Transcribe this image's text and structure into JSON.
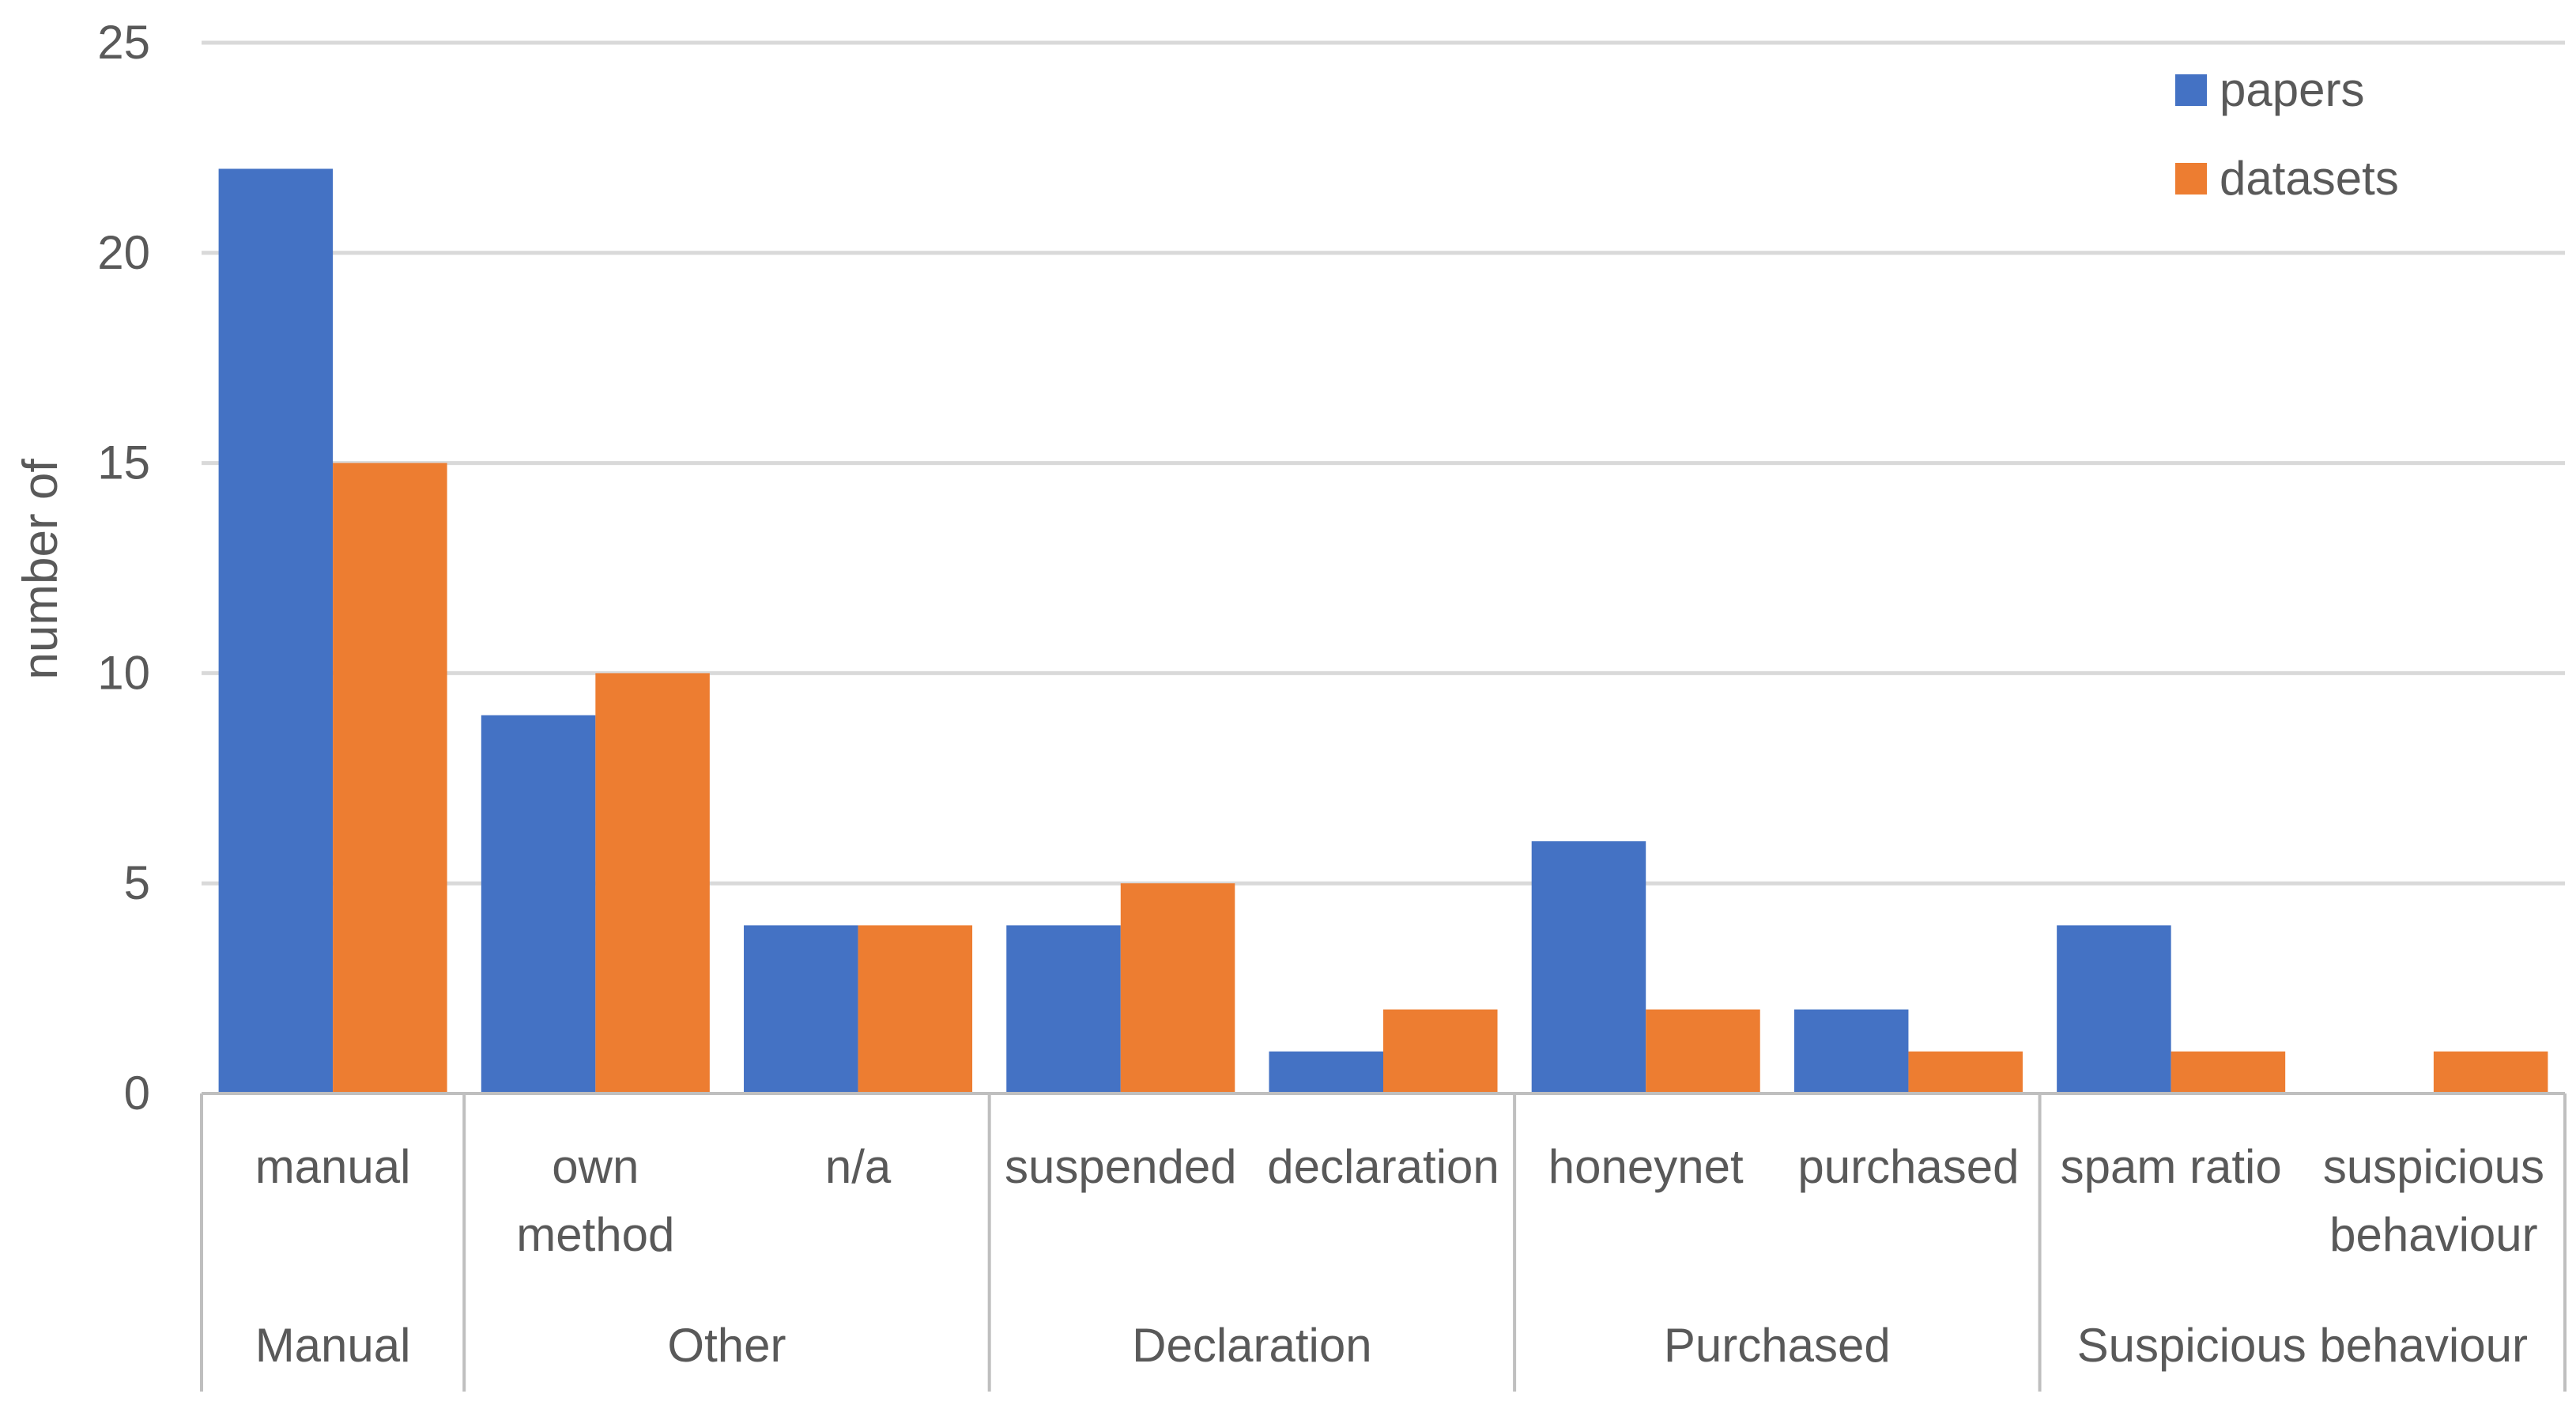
{
  "chart_data": {
    "type": "bar",
    "title": "",
    "xlabel": "",
    "ylabel": "number of",
    "ylim": [
      0,
      25
    ],
    "yticks": [
      0,
      5,
      10,
      15,
      20,
      25
    ],
    "grid": true,
    "legend_position": "top-right",
    "categories": [
      {
        "label": [
          "manual"
        ],
        "group": "Manual"
      },
      {
        "label": [
          "own",
          "method"
        ],
        "group": "Other"
      },
      {
        "label": [
          "n/a"
        ],
        "group": "Other"
      },
      {
        "label": [
          "suspended"
        ],
        "group": "Declaration"
      },
      {
        "label": [
          "declaration"
        ],
        "group": "Declaration"
      },
      {
        "label": [
          "honeynet"
        ],
        "group": "Purchased"
      },
      {
        "label": [
          "purchased"
        ],
        "group": "Purchased"
      },
      {
        "label": [
          "spam ratio"
        ],
        "group": "Suspicious behaviour"
      },
      {
        "label": [
          "suspicious",
          "behaviour"
        ],
        "group": "Suspicious behaviour"
      }
    ],
    "groups": [
      "Manual",
      "Other",
      "Declaration",
      "Purchased",
      "Suspicious behaviour"
    ],
    "series": [
      {
        "name": "papers",
        "color": "#4472c4",
        "values": [
          22,
          9,
          4,
          4,
          1,
          6,
          2,
          4,
          0
        ]
      },
      {
        "name": "datasets",
        "color": "#ed7d31",
        "values": [
          15,
          10,
          4,
          5,
          2,
          2,
          1,
          1,
          1
        ]
      }
    ]
  }
}
